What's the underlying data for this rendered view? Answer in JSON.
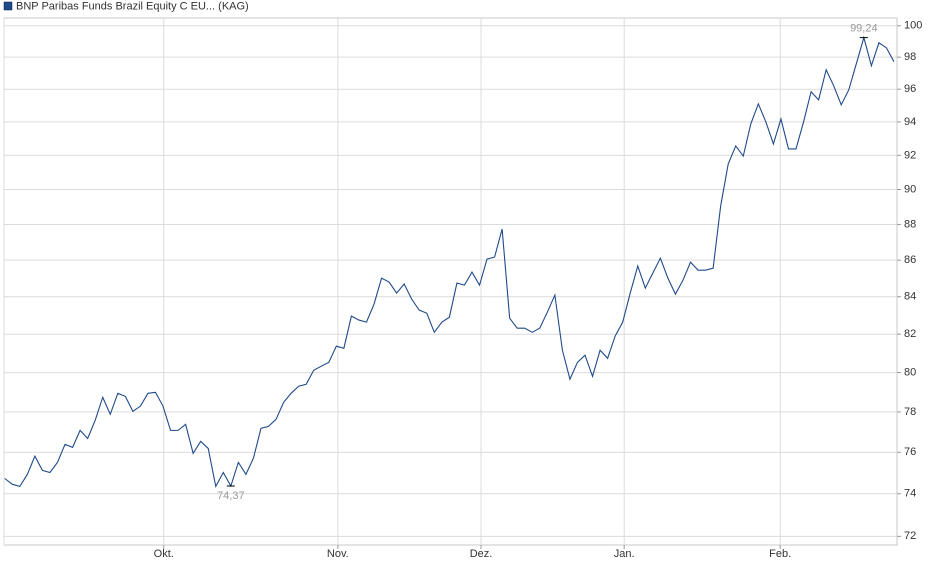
{
  "chart_data": {
    "type": "line",
    "log_scale": true,
    "grid": true,
    "series": [
      {
        "name": "BNP Paribas Funds Brazil Equity C EU... (KAG)",
        "color": "#1f4a8a",
        "values": [
          74.73,
          74.45,
          74.35,
          74.93,
          75.81,
          75.12,
          75.02,
          75.51,
          76.39,
          76.24,
          77.08,
          76.68,
          77.58,
          78.74,
          77.88,
          78.94,
          78.79,
          78.03,
          78.29,
          78.94,
          78.99,
          78.29,
          77.08,
          77.08,
          77.38,
          75.95,
          76.54,
          76.19,
          74.35,
          75.02,
          74.37,
          75.51,
          74.93,
          75.71,
          77.18,
          77.28,
          77.63,
          78.48,
          78.94,
          79.3,
          79.4,
          80.12,
          80.33,
          80.53,
          81.37,
          81.26,
          82.96,
          82.75,
          82.64,
          83.6,
          85.01,
          84.8,
          84.2,
          84.69,
          83.87,
          83.28,
          83.12,
          82.1,
          82.64,
          82.9,
          84.74,
          84.63,
          85.34,
          84.63,
          86.06,
          86.17,
          87.74,
          82.85,
          82.32,
          82.32,
          82.1,
          82.32,
          83.17,
          84.09,
          81.16,
          79.66,
          80.53,
          80.9,
          79.81,
          81.16,
          80.74,
          81.9,
          82.64,
          84.2,
          85.68,
          84.47,
          85.29,
          86.11,
          85.01,
          84.14,
          84.9,
          85.89,
          85.45,
          85.45,
          85.56,
          89.05,
          91.49,
          92.56,
          91.96,
          93.88,
          95.1,
          94.0,
          92.68,
          94.18,
          92.38,
          92.38,
          94.0,
          95.84,
          95.34,
          97.21,
          96.21,
          95.04,
          95.96,
          97.58,
          99.24,
          97.46,
          98.91,
          98.59,
          97.71
        ]
      }
    ],
    "annotations": [
      {
        "label": "99,24",
        "value": 99.24
      },
      {
        "label": "74,37",
        "value": 74.37
      }
    ],
    "xlim": [
      -0.1,
      118.4
    ],
    "xticks": [
      {
        "value": 21.1,
        "label": "Okt."
      },
      {
        "value": 44.2,
        "label": "Nov."
      },
      {
        "value": 63.2,
        "label": "Dez."
      },
      {
        "value": 82.2,
        "label": "Jan."
      },
      {
        "value": 102.9,
        "label": "Feb."
      }
    ],
    "ylim": [
      71.6,
      100.5
    ],
    "yticks": [
      72,
      74,
      76,
      78,
      80,
      82,
      84,
      86,
      88,
      90,
      92,
      94,
      96,
      98,
      100
    ]
  }
}
